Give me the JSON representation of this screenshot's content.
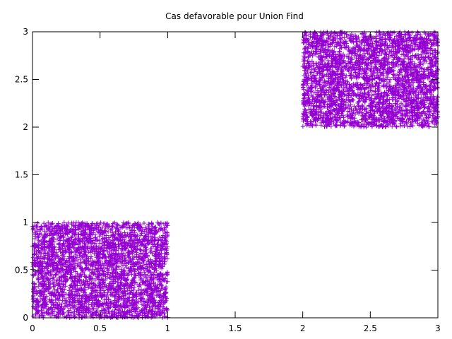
{
  "chart_data": {
    "type": "scatter",
    "title": "Cas defavorable pour Union Find",
    "xlabel": "",
    "ylabel": "",
    "xlim": [
      0,
      3
    ],
    "ylim": [
      0,
      3
    ],
    "x_ticks": [
      0,
      0.5,
      1,
      1.5,
      2,
      2.5,
      3
    ],
    "y_ticks": [
      0,
      0.5,
      1,
      1.5,
      2,
      2.5,
      3
    ],
    "x_tick_labels": [
      "0",
      "0.5",
      "1",
      "1.5",
      "2",
      "2.5",
      "3"
    ],
    "y_tick_labels": [
      "0",
      "0.5",
      "1",
      "1.5",
      "2",
      "2.5",
      "3"
    ],
    "grid": false,
    "legend": "none",
    "marker": "plus",
    "color": "#9400d3",
    "series": [
      {
        "clusters": [
          {
            "x_range": [
              0,
              1
            ],
            "y_range": [
              0,
              1
            ],
            "point_count": 3000
          },
          {
            "x_range": [
              2,
              3
            ],
            "y_range": [
              2,
              3
            ],
            "point_count": 3000
          }
        ]
      }
    ]
  }
}
